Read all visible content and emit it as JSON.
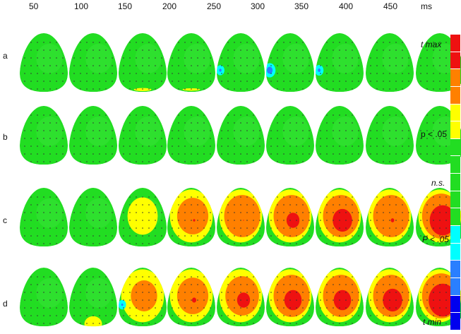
{
  "chart_data": {
    "type": "heatmap",
    "time_unit": "ms",
    "time_points": [
      "50",
      "100",
      "150",
      "200",
      "250",
      "300",
      "350",
      "400",
      "450"
    ],
    "rows": [
      "a",
      "b",
      "c",
      "d"
    ],
    "colorbar": {
      "labels": [
        "t max",
        "p < .05",
        "n.s.",
        "P < .05",
        "t min"
      ],
      "colors": [
        "#ee1111",
        "#ee1111",
        "#ff8000",
        "#ff8000",
        "#ffff00",
        "#ffff00",
        "#22dd22",
        "#22dd22",
        "#22dd22",
        "#22dd22",
        "#22dd22",
        "#00ffff",
        "#00ffff",
        "#2a7fff",
        "#2a7fff",
        "#0000ee",
        "#0000ee"
      ]
    },
    "maps": [
      [
        {
          "yellow": 0,
          "orange": 0,
          "red": 0,
          "blue": 0
        },
        {
          "yellow": 0,
          "orange": 0,
          "red": 0,
          "blue": 0
        },
        {
          "yellow": 0.05,
          "orange": 0,
          "red": 0,
          "blue": 0
        },
        {
          "yellow": 0.04,
          "orange": 0,
          "red": 0,
          "blue": 0
        },
        {
          "yellow": 0,
          "orange": 0,
          "red": 0,
          "blue": 0.05
        },
        {
          "yellow": 0,
          "orange": 0,
          "red": 0,
          "blue": 0.12
        },
        {
          "yellow": 0,
          "orange": 0,
          "red": 0,
          "blue": 0.06
        },
        {
          "yellow": 0,
          "orange": 0,
          "red": 0,
          "blue": 0
        },
        {
          "yellow": 0,
          "orange": 0,
          "red": 0,
          "blue": 0
        }
      ],
      [
        {
          "yellow": 0,
          "orange": 0,
          "red": 0,
          "blue": 0
        },
        {
          "yellow": 0,
          "orange": 0,
          "red": 0,
          "blue": 0
        },
        {
          "yellow": 0,
          "orange": 0,
          "red": 0,
          "blue": 0
        },
        {
          "yellow": 0,
          "orange": 0,
          "red": 0,
          "blue": 0
        },
        {
          "yellow": 0,
          "orange": 0,
          "red": 0,
          "blue": 0
        },
        {
          "yellow": 0,
          "orange": 0,
          "red": 0,
          "blue": 0
        },
        {
          "yellow": 0,
          "orange": 0,
          "red": 0,
          "blue": 0
        },
        {
          "yellow": 0,
          "orange": 0,
          "red": 0,
          "blue": 0
        },
        {
          "yellow": 0,
          "orange": 0,
          "red": 0,
          "blue": 0
        }
      ],
      [
        {
          "yellow": 0,
          "orange": 0,
          "red": 0,
          "blue": 0
        },
        {
          "yellow": 0,
          "orange": 0,
          "red": 0,
          "blue": 0
        },
        {
          "yellow": 0.6,
          "orange": 0,
          "red": 0,
          "blue": 0
        },
        {
          "yellow": 0.85,
          "orange": 0.65,
          "red": 0.05,
          "blue": 0
        },
        {
          "yellow": 0.85,
          "orange": 0.75,
          "red": 0.02,
          "blue": 0
        },
        {
          "yellow": 0.85,
          "orange": 0.75,
          "red": 0.3,
          "blue": 0
        },
        {
          "yellow": 0.85,
          "orange": 0.75,
          "red": 0.45,
          "blue": 0
        },
        {
          "yellow": 0.85,
          "orange": 0.75,
          "red": 0.08,
          "blue": 0
        },
        {
          "yellow": 0.85,
          "orange": 0.8,
          "red": 0.6,
          "blue": 0
        }
      ],
      [
        {
          "yellow": 0,
          "orange": 0,
          "red": 0,
          "blue": 0
        },
        {
          "yellow": 0.25,
          "orange": 0,
          "red": 0,
          "blue": 0
        },
        {
          "yellow": 0.85,
          "orange": 0.55,
          "red": 0,
          "blue": 0.04
        },
        {
          "yellow": 0.85,
          "orange": 0.65,
          "red": 0.1,
          "blue": 0
        },
        {
          "yellow": 0.85,
          "orange": 0.7,
          "red": 0.3,
          "blue": 0
        },
        {
          "yellow": 0.85,
          "orange": 0.75,
          "red": 0.4,
          "blue": 0
        },
        {
          "yellow": 0.85,
          "orange": 0.75,
          "red": 0.4,
          "blue": 0
        },
        {
          "yellow": 0.85,
          "orange": 0.75,
          "red": 0.45,
          "blue": 0
        },
        {
          "yellow": 0.85,
          "orange": 0.8,
          "red": 0.65,
          "blue": 0
        }
      ]
    ]
  }
}
